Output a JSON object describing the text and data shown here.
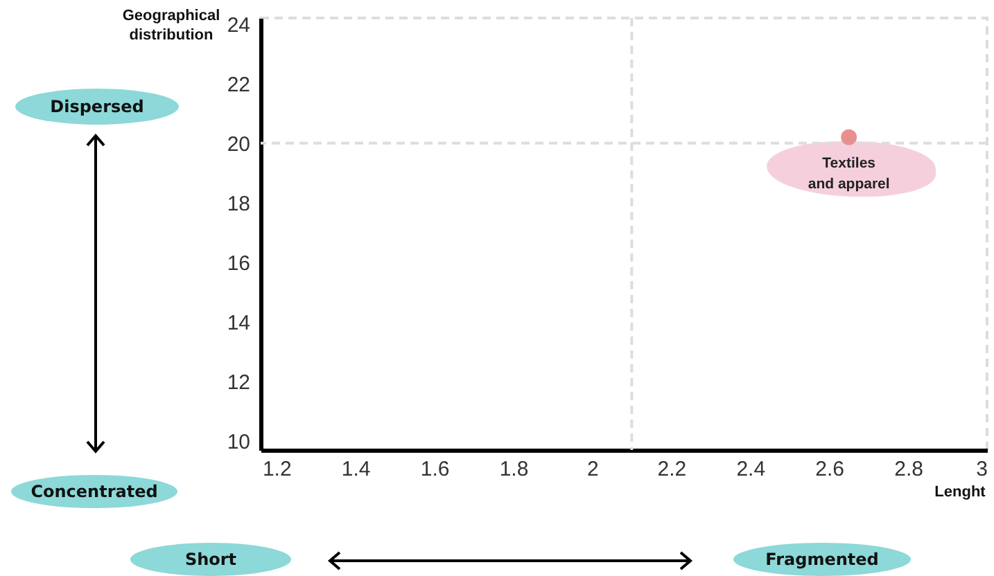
{
  "chart_data": {
    "type": "scatter",
    "xlabel": "Lenght",
    "ylabel": "Geographical distribution",
    "x": [
      2.65
    ],
    "series": [
      {
        "color": "#e8908f",
        "values": [
          20.2
        ]
      }
    ],
    "xlim": [
      1.16,
      3
    ],
    "xticks": [
      1.2,
      1.4,
      1.6,
      1.8,
      2,
      2.2,
      2.4,
      2.6,
      2.8,
      3
    ],
    "ylim": [
      9.7,
      24.2
    ],
    "yticks": [
      10,
      12,
      14,
      16,
      18,
      20,
      22,
      24
    ],
    "ref_lines": [
      {
        "axis": "x",
        "value": 2.1,
        "color": "#dddddd",
        "line_style": "dashed"
      },
      {
        "axis": "y",
        "value": 20,
        "color": "#dddddd",
        "line_style": "dashed"
      }
    ],
    "annotations": [
      {
        "text": "Textiles and apparel",
        "x": 2.65,
        "y": 20.2
      },
      "Dispersed",
      "Concentrated",
      "Short",
      "Fragmented"
    ],
    "marker": "circle",
    "grid": false
  }
}
